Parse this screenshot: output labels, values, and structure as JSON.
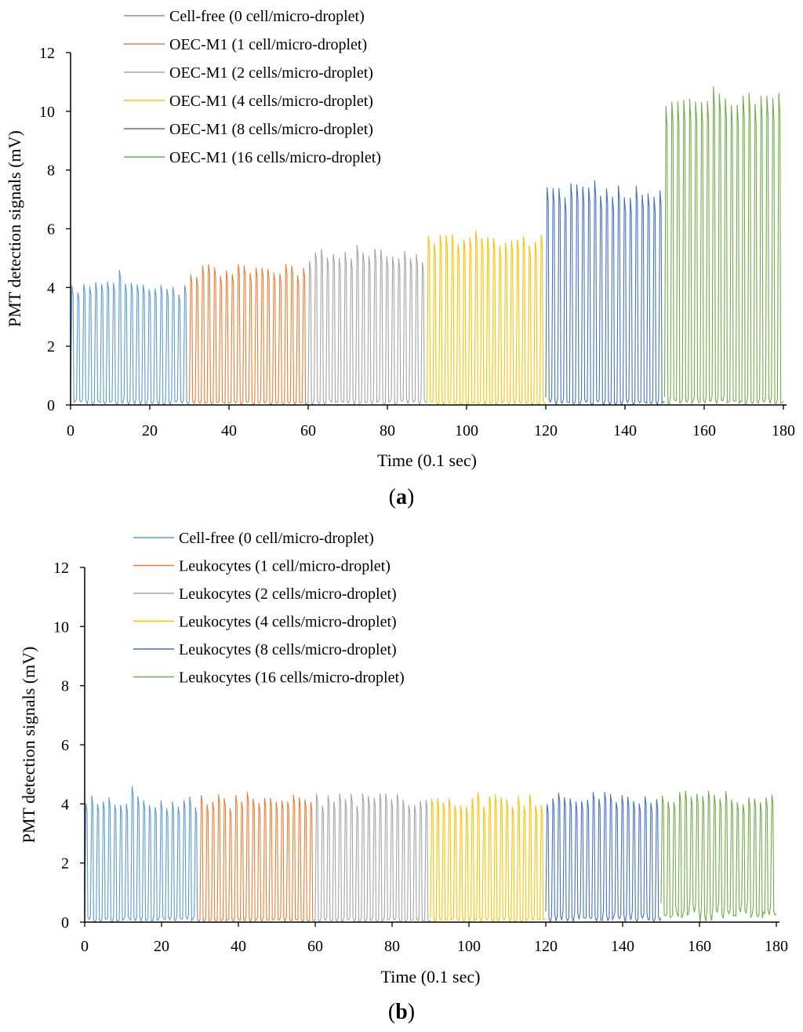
{
  "chart_data": [
    {
      "type": "line",
      "panel_label": "a",
      "title": "",
      "xlabel": "Time (0.1 sec)",
      "ylabel": "PMT detection signals (mV)",
      "xlim": [
        0,
        180
      ],
      "ylim": [
        0,
        12
      ],
      "xticks": [
        0,
        20,
        40,
        60,
        80,
        100,
        120,
        140,
        160,
        180
      ],
      "yticks": [
        0,
        2,
        4,
        6,
        8,
        10,
        12
      ],
      "legend_position": "top-left",
      "grid": false,
      "series": [
        {
          "name": "Cell-free (0 cell/micro-droplet)",
          "color": "#5B9BD5",
          "x_range": [
            0,
            30
          ],
          "peak_mean": 4.0,
          "peak_max": 4.6,
          "baseline": 0.2
        },
        {
          "name": "OEC-M1 (1 cell/micro-droplet)",
          "color": "#ED7D31",
          "x_range": [
            30,
            60
          ],
          "peak_mean": 4.6,
          "peak_max": 4.8,
          "baseline": 0.15
        },
        {
          "name": "OEC-M1 (2 cells/micro-droplet)",
          "color": "#A5A5A5",
          "x_range": [
            60,
            90
          ],
          "peak_mean": 5.1,
          "peak_max": 5.45,
          "baseline": 0.2
        },
        {
          "name": "OEC-M1 (4 cells/micro-droplet)",
          "color": "#FFC000",
          "x_range": [
            90,
            120
          ],
          "peak_mean": 5.65,
          "peak_max": 5.95,
          "baseline": 0.15
        },
        {
          "name": "OEC-M1 (8 cells/micro-droplet)",
          "color": "#4472C4",
          "x_range": [
            120,
            150
          ],
          "peak_mean": 7.3,
          "peak_max": 7.65,
          "baseline": 0.2
        },
        {
          "name": "OEC-M1 (16 cells/micro-droplet)",
          "color": "#70AD47",
          "x_range": [
            150,
            180
          ],
          "peak_mean": 10.4,
          "peak_max": 10.85,
          "baseline": 0.25
        }
      ]
    },
    {
      "type": "line",
      "panel_label": "b",
      "title": "",
      "xlabel": "Time (0.1 sec)",
      "ylabel": "PMT detection signals (mV)",
      "xlim": [
        0,
        180
      ],
      "ylim": [
        0,
        12
      ],
      "xticks": [
        0,
        20,
        40,
        60,
        80,
        100,
        120,
        140,
        160,
        180
      ],
      "yticks": [
        0,
        2,
        4,
        6,
        8,
        10,
        12
      ],
      "legend_position": "top-left",
      "grid": false,
      "series": [
        {
          "name": "Cell-free (0 cell/micro-droplet)",
          "color": "#5B9BD5",
          "x_range": [
            0,
            30
          ],
          "peak_mean": 4.05,
          "peak_max": 4.6,
          "baseline": 0.2
        },
        {
          "name": "Leukocytes (1 cell/micro-droplet)",
          "color": "#ED7D31",
          "x_range": [
            30,
            60
          ],
          "peak_mean": 4.1,
          "peak_max": 4.4,
          "baseline": 0.15
        },
        {
          "name": "Leukocytes (2 cells/micro-droplet)",
          "color": "#A5A5A5",
          "x_range": [
            60,
            90
          ],
          "peak_mean": 4.15,
          "peak_max": 4.35,
          "baseline": 0.15
        },
        {
          "name": "Leukocytes (4 cells/micro-droplet)",
          "color": "#FFC000",
          "x_range": [
            90,
            120
          ],
          "peak_mean": 4.15,
          "peak_max": 4.4,
          "baseline": 0.2
        },
        {
          "name": "Leukocytes (8 cells/micro-droplet)",
          "color": "#4472C4",
          "x_range": [
            120,
            150
          ],
          "peak_mean": 4.2,
          "peak_max": 4.4,
          "baseline": 0.3
        },
        {
          "name": "Leukocytes (16 cells/micro-droplet)",
          "color": "#70AD47",
          "x_range": [
            150,
            180
          ],
          "peak_mean": 4.2,
          "peak_max": 4.45,
          "baseline": 0.6
        }
      ]
    }
  ],
  "peaks_per_segment": 20
}
